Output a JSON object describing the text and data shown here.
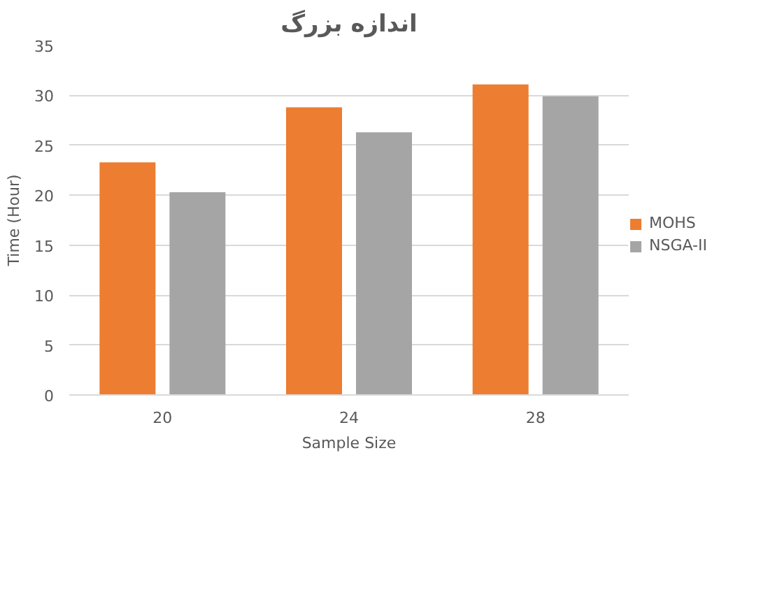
{
  "chart_data": {
    "type": "bar",
    "title": "اندازه بزرگ",
    "xlabel": "Sample Size",
    "ylabel": "Time (Hour)",
    "categories": [
      "20",
      "24",
      "28"
    ],
    "series": [
      {
        "name": "MOHS",
        "color": "#ed7d31",
        "values": [
          23.3,
          28.8,
          31.1
        ]
      },
      {
        "name": "NSGA-II",
        "color": "#a5a5a5",
        "values": [
          20.3,
          26.3,
          29.9
        ]
      }
    ],
    "ylim": [
      0,
      35
    ],
    "yticks": [
      0,
      5,
      10,
      15,
      20,
      25,
      30,
      35
    ],
    "grid": "y",
    "legend": "right"
  }
}
